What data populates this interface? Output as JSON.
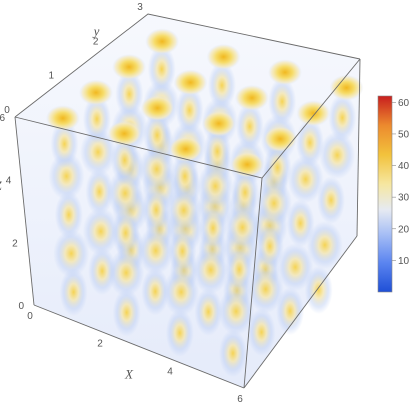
{
  "chart_data": {
    "type": "volume-density-3d",
    "title": "",
    "axes": {
      "x": {
        "label": "X",
        "range": [
          0,
          6
        ],
        "ticks": [
          "0",
          "2",
          "4",
          "6"
        ]
      },
      "y": {
        "label": "y",
        "range": [
          0,
          3
        ],
        "ticks": [
          "0",
          "1",
          "2",
          "3"
        ]
      },
      "z": {
        "label": "Z",
        "range": [
          0,
          6
        ],
        "ticks": [
          "0",
          "2",
          "4",
          "6"
        ]
      }
    },
    "colorbar": {
      "range": [
        0,
        62
      ],
      "ticks": [
        "10",
        "20",
        "30",
        "40",
        "50",
        "60"
      ],
      "colors": [
        "#1f4fd6",
        "#5b85f0",
        "#a9c0f5",
        "#e6eaf2",
        "#f6e7a1",
        "#f2c23c",
        "#ec8a2e",
        "#c81e1e"
      ]
    },
    "grid": false,
    "description_values": {
      "columns_x": 4,
      "columns_y": 4,
      "peak_value": 62
    }
  }
}
